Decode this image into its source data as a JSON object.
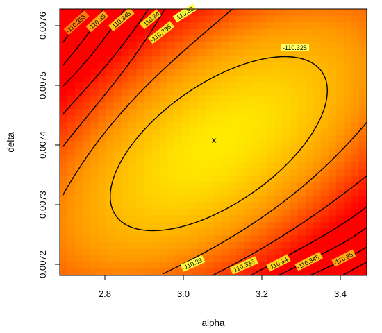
{
  "chart_data": {
    "type": "heatmap",
    "subtype": "contour",
    "title": "",
    "xlabel": "alpha",
    "ylabel": "delta",
    "xlim": [
      2.68,
      3.47
    ],
    "ylim": [
      0.007182,
      0.007622
    ],
    "x_ticks": [
      2.8,
      3.0,
      3.2,
      3.4
    ],
    "x_tick_labels": [
      "2.8",
      "3.0",
      "3.2",
      "3.4"
    ],
    "y_ticks": [
      0.0072,
      0.0073,
      0.0074,
      0.0075,
      0.0076
    ],
    "y_tick_labels": [
      "0.0072",
      "0.0073",
      "0.0074",
      "0.0075",
      "0.0076"
    ],
    "surface": {
      "maximum": {
        "alpha": 3.077,
        "delta": 0.007405,
        "value": -110.3225
      },
      "contour_levels": [
        -110.325,
        -110.33,
        -110.335,
        -110.34,
        -110.345,
        -110.35,
        -110.355
      ],
      "color_scale": [
        "#ff0000",
        "#ff9900",
        "#ffff00",
        "#ffffff"
      ]
    },
    "contour_labels": {
      "lvl_325": "-110.325",
      "lvl_33": "-110.33",
      "lvl_335": "-110.335",
      "lvl_34": "-110.34",
      "lvl_345": "-110.345",
      "lvl_35": "-110.35",
      "lvl_355": "-110.355"
    },
    "max_marker": "×",
    "grid": false,
    "legend": "none"
  }
}
